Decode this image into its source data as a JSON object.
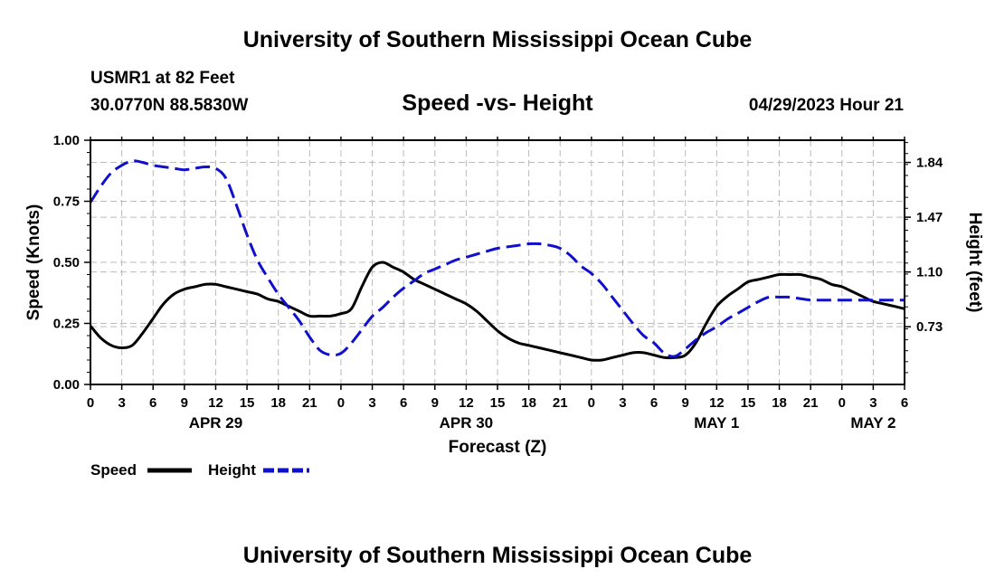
{
  "header": {
    "main_title": "University of Southern Mississippi Ocean Cube",
    "station": "USMR1 at 82 Feet",
    "coords": "30.0770N  88.5830W",
    "chart_title": "Speed -vs- Height",
    "timestamp": "04/29/2023 Hour 21"
  },
  "footer": {
    "title": "University of Southern Mississippi Ocean Cube"
  },
  "chart_data": {
    "type": "line",
    "title": "Speed -vs- Height",
    "xlabel": "Forecast (Z)",
    "ylabel": "Speed (Knots)",
    "y2label": "Height (feet)",
    "xlim": [
      0,
      78
    ],
    "ylim": [
      0,
      1.0
    ],
    "y2lim": [
      0.34,
      1.99
    ],
    "x_tick_labels": [
      "0",
      "3",
      "6",
      "9",
      "12",
      "15",
      "18",
      "21",
      "0",
      "3",
      "6",
      "9",
      "12",
      "15",
      "18",
      "21",
      "0",
      "3",
      "6",
      "9",
      "12",
      "15",
      "18",
      "21",
      "0",
      "3",
      "6"
    ],
    "day_labels": [
      {
        "label": "APR 29",
        "hour": 12
      },
      {
        "label": "APR 30",
        "hour": 36
      },
      {
        "label": "MAY 1",
        "hour": 60
      },
      {
        "label": "MAY 2",
        "hour": 75
      }
    ],
    "y_ticks": [
      "0.00",
      "0.25",
      "0.50",
      "0.75",
      "1.00"
    ],
    "y2_ticks": [
      "0.73",
      "1.10",
      "1.47",
      "1.84"
    ],
    "grid": true,
    "legend_position": "bottom-left",
    "series": [
      {
        "name": "Speed",
        "axis": "left",
        "color": "#000000",
        "dash": "solid",
        "x": [
          0,
          1,
          2,
          3,
          4,
          5,
          6,
          7,
          8,
          9,
          10,
          11,
          12,
          13,
          14,
          15,
          16,
          17,
          18,
          19,
          20,
          21,
          22,
          23,
          24,
          25,
          26,
          27,
          28,
          29,
          30,
          31,
          32,
          33,
          34,
          35,
          36,
          37,
          38,
          39,
          40,
          41,
          42,
          43,
          44,
          45,
          46,
          47,
          48,
          49,
          50,
          51,
          52,
          53,
          54,
          55,
          56,
          57,
          58,
          59,
          60,
          61,
          62,
          63,
          64,
          65,
          66,
          67,
          68,
          69,
          70,
          71,
          72,
          73,
          74,
          75,
          76,
          77,
          78
        ],
        "values": [
          0.24,
          0.19,
          0.16,
          0.15,
          0.16,
          0.21,
          0.27,
          0.33,
          0.37,
          0.39,
          0.4,
          0.41,
          0.41,
          0.4,
          0.39,
          0.38,
          0.37,
          0.35,
          0.34,
          0.32,
          0.3,
          0.28,
          0.28,
          0.28,
          0.29,
          0.31,
          0.4,
          0.48,
          0.5,
          0.48,
          0.46,
          0.43,
          0.41,
          0.39,
          0.37,
          0.35,
          0.33,
          0.3,
          0.26,
          0.22,
          0.19,
          0.17,
          0.16,
          0.15,
          0.14,
          0.13,
          0.12,
          0.11,
          0.1,
          0.1,
          0.11,
          0.12,
          0.13,
          0.13,
          0.12,
          0.11,
          0.11,
          0.12,
          0.17,
          0.25,
          0.32,
          0.36,
          0.39,
          0.42,
          0.43,
          0.44,
          0.45,
          0.45,
          0.45,
          0.44,
          0.43,
          0.41,
          0.4,
          0.38,
          0.36,
          0.34,
          0.33,
          0.32,
          0.31
        ]
      },
      {
        "name": "Height",
        "axis": "right",
        "color": "#1010cc",
        "dash": "dashed",
        "x": [
          0,
          1,
          2,
          3,
          4,
          5,
          6,
          7,
          8,
          9,
          10,
          11,
          12,
          13,
          14,
          15,
          16,
          17,
          18,
          19,
          20,
          21,
          22,
          23,
          24,
          25,
          26,
          27,
          28,
          29,
          30,
          31,
          32,
          33,
          34,
          35,
          36,
          37,
          38,
          39,
          40,
          41,
          42,
          43,
          44,
          45,
          46,
          47,
          48,
          49,
          50,
          51,
          52,
          53,
          54,
          55,
          56,
          57,
          58,
          59,
          60,
          61,
          62,
          63,
          64,
          65,
          66,
          67,
          68,
          69,
          70,
          71,
          72,
          73,
          74,
          75,
          76,
          77,
          78
        ],
        "values": [
          1.57,
          1.68,
          1.77,
          1.82,
          1.85,
          1.84,
          1.82,
          1.81,
          1.8,
          1.79,
          1.8,
          1.81,
          1.8,
          1.73,
          1.55,
          1.35,
          1.18,
          1.06,
          0.95,
          0.86,
          0.77,
          0.66,
          0.57,
          0.54,
          0.55,
          0.62,
          0.71,
          0.8,
          0.86,
          0.93,
          0.99,
          1.04,
          1.09,
          1.12,
          1.15,
          1.18,
          1.2,
          1.22,
          1.24,
          1.26,
          1.27,
          1.28,
          1.29,
          1.29,
          1.28,
          1.26,
          1.21,
          1.14,
          1.09,
          1.02,
          0.93,
          0.84,
          0.75,
          0.67,
          0.62,
          0.55,
          0.53,
          0.58,
          0.64,
          0.69,
          0.73,
          0.78,
          0.82,
          0.86,
          0.9,
          0.93,
          0.93,
          0.93,
          0.92,
          0.91,
          0.91,
          0.91,
          0.91,
          0.91,
          0.91,
          0.91,
          0.91,
          0.91,
          0.91
        ]
      }
    ]
  }
}
